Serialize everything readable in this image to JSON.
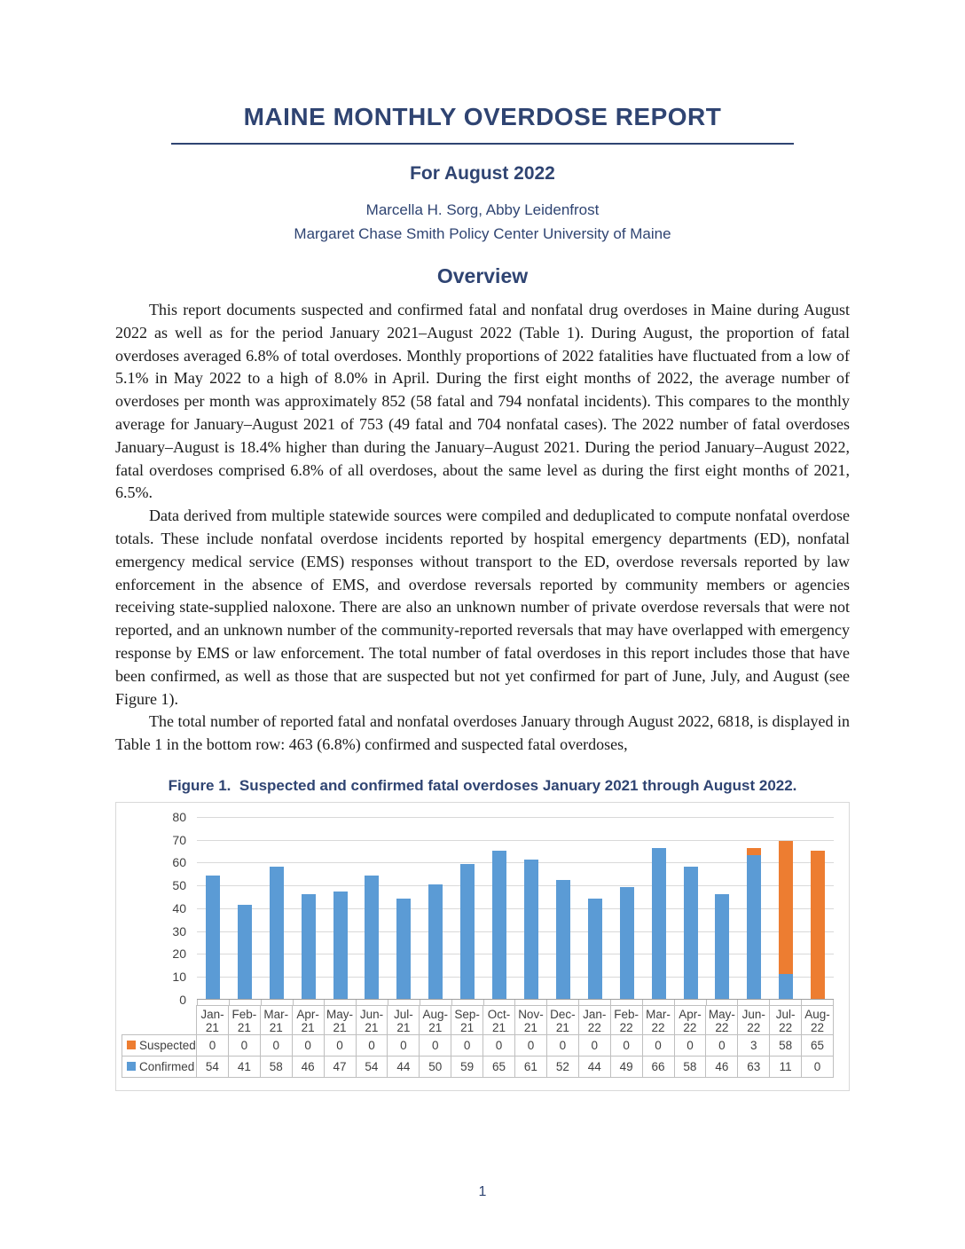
{
  "doc": {
    "title": "MAINE MONTHLY OVERDOSE REPORT",
    "subtitle": "For August 2022",
    "authors_line1": "Marcella H. Sorg, Abby Leidenfrost",
    "authors_line2": "Margaret Chase Smith Policy Center University of Maine",
    "section_heading": "Overview",
    "paragraph1": "This report documents suspected and confirmed fatal and nonfatal drug overdoses in Maine during August 2022 as well as for the period January 2021–August 2022 (Table 1). During August, the proportion of fatal overdoses averaged 6.8% of total overdoses. Monthly proportions of 2022 fatalities have fluctuated from a low of 5.1% in May 2022 to a high of 8.0% in April. During the first eight months of 2022, the average number of overdoses per month was approximately 852 (58 fatal and 794 nonfatal incidents). This compares to the monthly average for January–August 2021 of 753 (49 fatal and 704 nonfatal cases). The 2022 number of fatal overdoses January–August is 18.4% higher than during the January–August 2021. During the period January–August 2022, fatal overdoses comprised 6.8% of all overdoses, about the same level as during the first eight months of 2021, 6.5%.",
    "paragraph2": "Data derived from multiple statewide sources were compiled and deduplicated to compute nonfatal overdose totals. These include nonfatal overdose incidents reported by hospital emergency departments (ED), nonfatal emergency medical service (EMS) responses without transport to the ED, overdose reversals reported by law enforcement in the absence of EMS, and overdose reversals reported by community members or agencies receiving state-supplied naloxone. There are also an unknown number of private overdose reversals that were not reported, and an unknown number of the community-reported reversals that may have overlapped with emergency response by EMS or law enforcement. The total number of fatal overdoses in this report includes those that have been confirmed, as well as those that are suspected but not yet confirmed for part of June, July, and August (see Figure 1).",
    "paragraph3": "The total number of reported fatal and nonfatal overdoses January through August 2022, 6818, is displayed in Table 1 in the bottom row: 463 (6.8%) confirmed and suspected fatal overdoses,",
    "figure_caption": "Figure 1.  Suspected and confirmed fatal overdoses January 2021 through August 2022.",
    "page_number": "1"
  },
  "colors": {
    "heading": "#2f4472",
    "suspected": "#ed7d31",
    "confirmed": "#5b9bd5",
    "gridline": "#d9d9d9",
    "table_border": "#bfbfbf",
    "axis_text": "#404040"
  },
  "chart_data": {
    "type": "bar",
    "stacked": true,
    "title": "Suspected and confirmed fatal overdoses January 2021 through August 2022",
    "categories": [
      "Jan-21",
      "Feb-21",
      "Mar-21",
      "Apr-21",
      "May-21",
      "Jun-21",
      "Jul-21",
      "Aug-21",
      "Sep-21",
      "Oct-21",
      "Nov-21",
      "Dec-21",
      "Jan-22",
      "Feb-22",
      "Mar-22",
      "Apr-22",
      "May-22",
      "Jun-22",
      "Jul-22",
      "Aug-22"
    ],
    "series": [
      {
        "name": "Suspected",
        "color": "#ed7d31",
        "values": [
          0,
          0,
          0,
          0,
          0,
          0,
          0,
          0,
          0,
          0,
          0,
          0,
          0,
          0,
          0,
          0,
          0,
          3,
          58,
          65
        ]
      },
      {
        "name": "Confirmed",
        "color": "#5b9bd5",
        "values": [
          54,
          41,
          58,
          46,
          47,
          54,
          44,
          50,
          59,
          65,
          61,
          52,
          44,
          49,
          66,
          58,
          46,
          63,
          11,
          0
        ]
      }
    ],
    "xlabel": "",
    "ylabel": "",
    "ylim": [
      0,
      80
    ],
    "yticks": [
      0,
      10,
      20,
      30,
      40,
      50,
      60,
      70,
      80
    ],
    "grid": true,
    "legend_position": "table-left"
  }
}
